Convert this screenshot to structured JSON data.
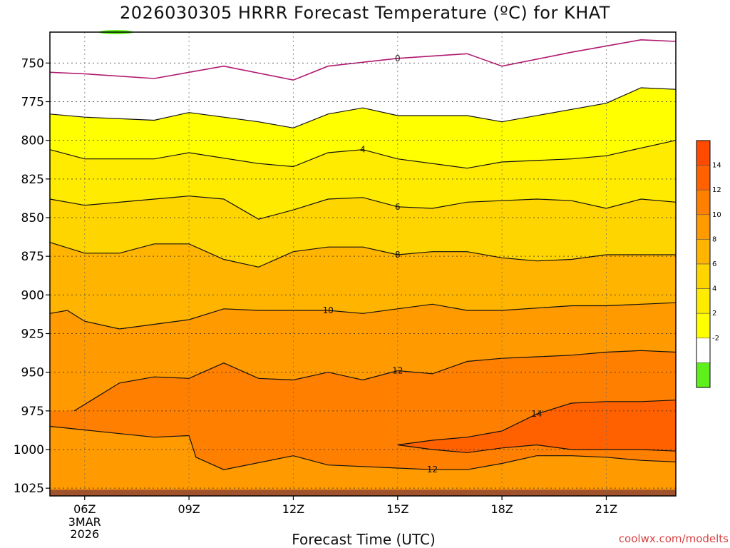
{
  "chart_data": {
    "type": "heatmap",
    "title": "2026030305 HRRR Forecast Temperature (ºC) for KHAT",
    "xlabel": "Forecast Time (UTC)",
    "ylabel": "",
    "credit": "coolwx.com/modelts",
    "x_ticks": [
      "06Z",
      "09Z",
      "12Z",
      "15Z",
      "18Z",
      "21Z"
    ],
    "x_tick_hours": [
      6,
      9,
      12,
      15,
      18,
      21
    ],
    "x_range_hours": [
      5,
      23
    ],
    "date_label": [
      "3MAR",
      "2026"
    ],
    "y_ticks": [
      "750",
      "775",
      "800",
      "825",
      "850",
      "875",
      "900",
      "925",
      "950",
      "975",
      "1000",
      "1025"
    ],
    "y_range_hpa": [
      730,
      1030
    ],
    "y_inverted": true,
    "grid": true,
    "colorbar": {
      "ticks": [
        "14",
        "12",
        "10",
        "8",
        "6",
        "4",
        "2",
        "-2"
      ],
      "bins": [
        {
          "range": [
            -4,
            -2
          ],
          "color": "#5ef01c"
        },
        {
          "range": [
            -2,
            2
          ],
          "color": "#ffffff"
        },
        {
          "range": [
            2,
            4
          ],
          "color": "#ffff00"
        },
        {
          "range": [
            4,
            6
          ],
          "color": "#ffeb00"
        },
        {
          "range": [
            6,
            8
          ],
          "color": "#ffd500"
        },
        {
          "range": [
            8,
            10
          ],
          "color": "#ffb400"
        },
        {
          "range": [
            10,
            12
          ],
          "color": "#ff9a00"
        },
        {
          "range": [
            12,
            14
          ],
          "color": "#ff7f00"
        },
        {
          "range": [
            14,
            16
          ],
          "color": "#ff6100"
        },
        {
          "range": [
            16,
            18
          ],
          "color": "#ff4a00"
        }
      ]
    },
    "ground_color": "#a0522d",
    "contours": [
      {
        "level": 0,
        "color": "#b0186e",
        "label": "0",
        "hours": [
          5,
          6,
          8,
          10,
          12,
          13,
          15,
          17,
          18,
          20,
          22,
          23
        ],
        "hpa": [
          756,
          757,
          760,
          752,
          761,
          752,
          747,
          744,
          752,
          743,
          735,
          736
        ]
      },
      {
        "level": 2,
        "label": "",
        "hours": [
          5,
          6,
          8,
          9,
          11,
          12,
          13,
          14,
          15,
          17,
          18,
          20,
          21,
          22,
          23
        ],
        "hpa": [
          783,
          785,
          787,
          782,
          788,
          792,
          783,
          779,
          784,
          784,
          788,
          780,
          776,
          766,
          767
        ]
      },
      {
        "level": 4,
        "label": "4",
        "hours": [
          5,
          6,
          8,
          9,
          11,
          12,
          13,
          14,
          15,
          17,
          18,
          20,
          21,
          23
        ],
        "hpa": [
          806,
          812,
          812,
          808,
          815,
          817,
          808,
          806,
          812,
          818,
          814,
          812,
          810,
          800
        ]
      },
      {
        "level": 6,
        "label": "6",
        "hours": [
          5,
          6,
          8,
          9,
          10,
          11,
          12,
          13,
          14,
          15,
          16,
          17,
          18,
          19,
          20,
          21,
          22,
          23
        ],
        "hpa": [
          838,
          842,
          838,
          836,
          838,
          851,
          845,
          838,
          837,
          843,
          844,
          840,
          839,
          838,
          839,
          844,
          838,
          840
        ]
      },
      {
        "level": 8,
        "label": "8",
        "hours": [
          5,
          6,
          7,
          8,
          9,
          10,
          11,
          12,
          13,
          14,
          15,
          16,
          17,
          18,
          19,
          20,
          21,
          22,
          23
        ],
        "hpa": [
          866,
          873,
          873,
          867,
          867,
          877,
          882,
          872,
          869,
          869,
          874,
          872,
          872,
          876,
          878,
          877,
          874,
          874,
          874
        ]
      },
      {
        "level": 10,
        "label": "10",
        "hours": [
          5,
          5.5,
          6,
          7,
          8,
          9,
          10,
          11,
          12,
          13,
          14,
          15,
          16,
          17,
          18,
          20,
          21,
          23
        ],
        "hpa": [
          912,
          910,
          917,
          922,
          919,
          916,
          909,
          910,
          910,
          910,
          912,
          909,
          906,
          910,
          910,
          907,
          907,
          905
        ]
      },
      {
        "level": 12,
        "label": "12",
        "hours": [
          5.7,
          7,
          8,
          9,
          10,
          11,
          12,
          13,
          14,
          15,
          16,
          17,
          18,
          19,
          20,
          21,
          22,
          23
        ],
        "hpa": [
          975,
          957,
          953,
          954,
          944,
          954,
          955,
          950,
          955,
          949,
          951,
          943,
          941,
          940,
          939,
          937,
          936,
          937
        ]
      },
      {
        "level": 14,
        "label": "14",
        "hours": [
          15,
          16,
          17,
          18,
          19,
          20,
          21,
          22,
          23
        ],
        "hpa": [
          997,
          994,
          992,
          988,
          977,
          970,
          969,
          969,
          968
        ]
      },
      {
        "level": 12.5,
        "label": "",
        "hours": [
          15,
          16,
          17,
          18,
          19,
          20,
          21,
          22,
          23
        ],
        "hpa": [
          997,
          1000,
          1002,
          999,
          997,
          1000,
          1000,
          1000,
          1001
        ]
      },
      {
        "level": 12,
        "label": "12",
        "hours": [
          5,
          8,
          9,
          9.2,
          10,
          12,
          13,
          14,
          15,
          16,
          17,
          18,
          19,
          20,
          21,
          22,
          23
        ],
        "hpa": [
          985,
          992,
          991,
          1005,
          1013,
          1004,
          1010,
          1011,
          1012,
          1013,
          1013,
          1009,
          1004,
          1004,
          1005,
          1007,
          1008
        ]
      }
    ]
  }
}
